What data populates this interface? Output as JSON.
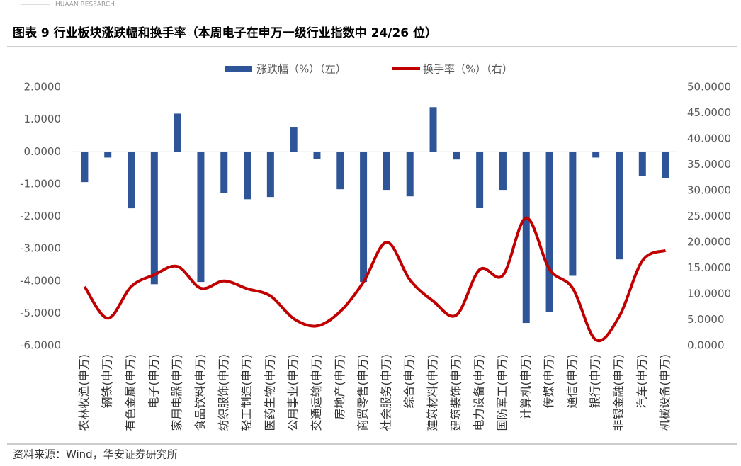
{
  "header": {
    "logo": "HUAAN RESEARCH"
  },
  "chart_data": {
    "type": "bar_line",
    "title": "图表 9 行业板块涨跌幅和换手率（本周电子在申万一级行业指数中 24/26 位）",
    "source": "资料来源：Wind，华安证券研究所",
    "categories": [
      "农林牧渔(申万)",
      "钢铁(申万)",
      "有色金属(申万)",
      "电子(申万)",
      "家用电器(申万)",
      "食品饮料(申万)",
      "纺织服饰(申万)",
      "轻工制造(申万)",
      "医药生物(申万)",
      "公用事业(申万)",
      "交通运输(申万)",
      "房地产(申万)",
      "商贸零售(申万)",
      "社会服务(申万)",
      "综合(申万)",
      "建筑材料(申万)",
      "建筑装饰(申万)",
      "电力设备(申万)",
      "国防军工(申万)",
      "计算机(申万)",
      "传媒(申万)",
      "通信(申万)",
      "银行(申万)",
      "非银金融(申万)",
      "汽车(申万)",
      "机械设备(申万)"
    ],
    "series": [
      {
        "name": "涨跌幅（%）（左）",
        "type": "bar",
        "color": "#2e5597",
        "axis": "y",
        "values": [
          -0.94,
          -0.18,
          -1.75,
          -4.1,
          1.18,
          -4.03,
          -1.27,
          -1.47,
          -1.4,
          0.75,
          -0.22,
          -1.16,
          -4.03,
          -1.18,
          -1.38,
          1.38,
          -0.24,
          -1.73,
          -1.18,
          -5.3,
          -4.96,
          -3.84,
          -0.18,
          -3.33,
          -0.75,
          -0.81
        ]
      },
      {
        "name": "换手率（%）（右）",
        "type": "line",
        "color": "#c00000",
        "axis": "y2",
        "values": [
          11.4,
          5.3,
          11.4,
          13.7,
          15.3,
          11.1,
          12.5,
          11.0,
          9.6,
          5.2,
          3.8,
          6.6,
          12.3,
          20.0,
          12.7,
          8.6,
          5.9,
          14.7,
          13.6,
          24.7,
          14.8,
          11.1,
          1.1,
          5.6,
          16.4,
          18.4
        ]
      }
    ],
    "ylim": [
      -6,
      2
    ],
    "yticks": [
      {
        "value": -6,
        "label": "-6.0000"
      },
      {
        "value": -5,
        "label": "-5.0000"
      },
      {
        "value": -4,
        "label": "-4.0000"
      },
      {
        "value": -3,
        "label": "-3.0000"
      },
      {
        "value": -2,
        "label": "-2.0000"
      },
      {
        "value": -1,
        "label": "-1.0000"
      },
      {
        "value": 0,
        "label": "0.0000"
      },
      {
        "value": 1,
        "label": "1.0000"
      },
      {
        "value": 2,
        "label": "2.0000"
      }
    ],
    "y2lim": [
      0,
      50
    ],
    "y2ticks": [
      {
        "value": 0,
        "label": "0.0000"
      },
      {
        "value": 5,
        "label": "5.0000"
      },
      {
        "value": 10,
        "label": "10.0000"
      },
      {
        "value": 15,
        "label": "15.0000"
      },
      {
        "value": 20,
        "label": "20.0000"
      },
      {
        "value": 25,
        "label": "25.0000"
      },
      {
        "value": 30,
        "label": "30.0000"
      },
      {
        "value": 35,
        "label": "35.0000"
      },
      {
        "value": 40,
        "label": "40.0000"
      },
      {
        "value": 45,
        "label": "45.0000"
      },
      {
        "value": 50,
        "label": "50.0000"
      }
    ],
    "legend": "top"
  }
}
